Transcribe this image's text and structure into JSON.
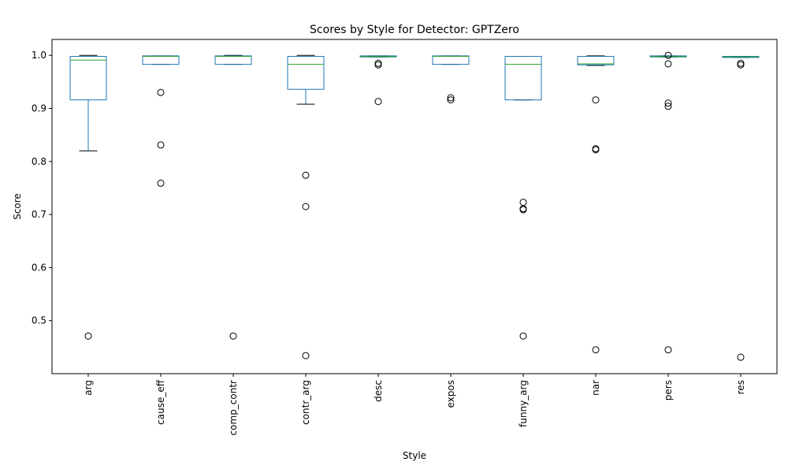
{
  "chart_data": {
    "type": "box",
    "title": "Scores by Style for Detector: GPTZero",
    "xlabel": "Style",
    "ylabel": "Score",
    "ylim": [
      0.4,
      1.03
    ],
    "yticks": [
      0.5,
      0.6,
      0.7,
      0.8,
      0.9,
      1.0
    ],
    "ytick_labels": [
      "0.5",
      "0.6",
      "0.7",
      "0.8",
      "0.9",
      "1.0"
    ],
    "categories": [
      "arg",
      "cause_eff",
      "comp_contr",
      "contr_arg",
      "desc",
      "expos",
      "funny_arg",
      "nar",
      "pers",
      "res"
    ],
    "boxes": [
      {
        "style": "arg",
        "whisker_low": 0.82,
        "q1": 0.916,
        "median": 0.991,
        "q3": 0.998,
        "whisker_high": 1.0,
        "outliers": [
          0.471
        ]
      },
      {
        "style": "cause_eff",
        "whisker_low": 0.983,
        "q1": 0.983,
        "median": 0.998,
        "q3": 0.999,
        "whisker_high": 0.999,
        "outliers": [
          0.93,
          0.831,
          0.759
        ]
      },
      {
        "style": "comp_contr",
        "whisker_low": 0.983,
        "q1": 0.983,
        "median": 0.998,
        "q3": 0.999,
        "whisker_high": 1.0,
        "outliers": [
          0.471
        ]
      },
      {
        "style": "contr_arg",
        "whisker_low": 0.908,
        "q1": 0.936,
        "median": 0.983,
        "q3": 0.998,
        "whisker_high": 1.0,
        "outliers": [
          0.774,
          0.715,
          0.434
        ]
      },
      {
        "style": "desc",
        "whisker_low": 0.997,
        "q1": 0.997,
        "median": 0.998,
        "q3": 0.999,
        "whisker_high": 0.999,
        "outliers": [
          0.985,
          0.982,
          0.913
        ]
      },
      {
        "style": "expos",
        "whisker_low": 0.983,
        "q1": 0.983,
        "median": 0.998,
        "q3": 0.999,
        "whisker_high": 0.999,
        "outliers": [
          0.92,
          0.916
        ]
      },
      {
        "style": "funny_arg",
        "whisker_low": 0.916,
        "q1": 0.916,
        "median": 0.983,
        "q3": 0.998,
        "whisker_high": 0.998,
        "outliers": [
          0.723,
          0.711,
          0.709,
          0.471
        ]
      },
      {
        "style": "nar",
        "whisker_low": 0.981,
        "q1": 0.982,
        "median": 0.984,
        "q3": 0.998,
        "whisker_high": 0.999,
        "outliers": [
          0.916,
          0.824,
          0.822,
          0.445
        ]
      },
      {
        "style": "pers",
        "whisker_low": 0.997,
        "q1": 0.997,
        "median": 0.998,
        "q3": 0.999,
        "whisker_high": 0.999,
        "outliers": [
          1.0,
          0.984,
          0.91,
          0.904,
          0.445
        ]
      },
      {
        "style": "res",
        "whisker_low": 0.996,
        "q1": 0.996,
        "median": 0.997,
        "q3": 0.998,
        "whisker_high": 0.998,
        "outliers": [
          0.985,
          0.982,
          0.431
        ]
      }
    ],
    "colors": {
      "box": "#1f77b4",
      "median": "#2ca02c",
      "whisker": "#000000",
      "outlier": "#000000"
    },
    "grid": false,
    "legend": false
  }
}
